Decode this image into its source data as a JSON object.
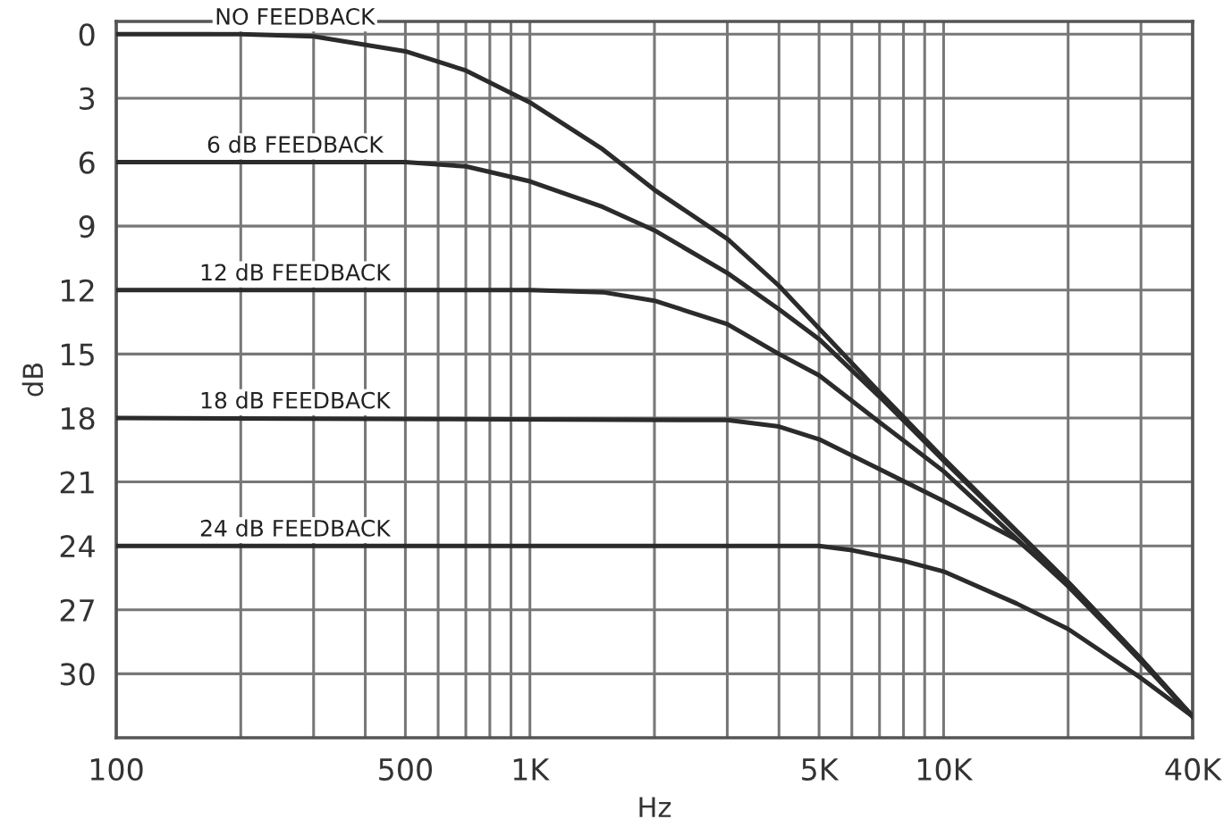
{
  "chart_data": {
    "type": "line",
    "xlabel": "Hz",
    "ylabel": "dB",
    "log": "x",
    "grid": true,
    "marker": "none",
    "line_style": "solid",
    "xlim": [
      100,
      40000
    ],
    "ylim": [
      33,
      -0.6
    ],
    "xticks": [
      {
        "value": 100,
        "label": "100"
      },
      {
        "value": 200,
        "label": null
      },
      {
        "value": 300,
        "label": null
      },
      {
        "value": 400,
        "label": null
      },
      {
        "value": 500,
        "label": "500"
      },
      {
        "value": 600,
        "label": null
      },
      {
        "value": 700,
        "label": null
      },
      {
        "value": 800,
        "label": null
      },
      {
        "value": 900,
        "label": null
      },
      {
        "value": 1000,
        "label": "1K"
      },
      {
        "value": 2000,
        "label": null
      },
      {
        "value": 3000,
        "label": null
      },
      {
        "value": 4000,
        "label": null
      },
      {
        "value": 5000,
        "label": "5K"
      },
      {
        "value": 6000,
        "label": null
      },
      {
        "value": 7000,
        "label": null
      },
      {
        "value": 8000,
        "label": null
      },
      {
        "value": 9000,
        "label": null
      },
      {
        "value": 10000,
        "label": "10K"
      },
      {
        "value": 20000,
        "label": null
      },
      {
        "value": 30000,
        "label": null
      },
      {
        "value": 40000,
        "label": "40K"
      }
    ],
    "yticks": [
      0,
      3,
      6,
      9,
      12,
      15,
      18,
      21,
      24,
      27,
      30
    ],
    "series": [
      {
        "name": "NO FEEDBACK",
        "color": "#2b2b2b",
        "x": [
          100,
          200,
          300,
          500,
          700,
          1000,
          1500,
          2000,
          3000,
          4000,
          5000,
          7000,
          10000,
          20000,
          30000,
          40000
        ],
        "values": [
          0,
          0,
          0.1,
          0.8,
          1.7,
          3.2,
          5.4,
          7.3,
          9.6,
          11.8,
          13.8,
          16.8,
          19.9,
          25.7,
          29.3,
          32
        ]
      },
      {
        "name": "6 dB FEEDBACK",
        "color": "#2b2b2b",
        "x": [
          100,
          500,
          700,
          1000,
          1500,
          2000,
          3000,
          4000,
          5000,
          7000,
          10000,
          20000,
          30000,
          40000
        ],
        "values": [
          6,
          6,
          6.2,
          6.9,
          8.1,
          9.2,
          11.2,
          12.9,
          14.3,
          17.0,
          20.0,
          25.7,
          29.3,
          32
        ]
      },
      {
        "name": "12 dB FEEDBACK",
        "color": "#2b2b2b",
        "x": [
          100,
          1000,
          1500,
          2000,
          3000,
          4000,
          5000,
          7000,
          10000,
          20000,
          30000,
          40000
        ],
        "values": [
          12,
          12,
          12.1,
          12.5,
          13.6,
          15.0,
          16.0,
          18.2,
          20.5,
          25.9,
          29.4,
          32
        ]
      },
      {
        "name": "18 dB FEEDBACK",
        "color": "#2b2b2b",
        "x": [
          100,
          3000,
          4000,
          5000,
          7000,
          10000,
          15000,
          20000,
          30000,
          40000
        ],
        "values": [
          18,
          18.1,
          18.4,
          19.0,
          20.4,
          21.9,
          23.7,
          25.8,
          29.4,
          32
        ]
      },
      {
        "name": "24 dB FEEDBACK",
        "color": "#2b2b2b",
        "x": [
          100,
          5000,
          6000,
          8000,
          10000,
          15000,
          20000,
          30000,
          40000
        ],
        "values": [
          24,
          24.0,
          24.2,
          24.7,
          25.2,
          26.7,
          27.9,
          30.2,
          32
        ]
      }
    ]
  }
}
